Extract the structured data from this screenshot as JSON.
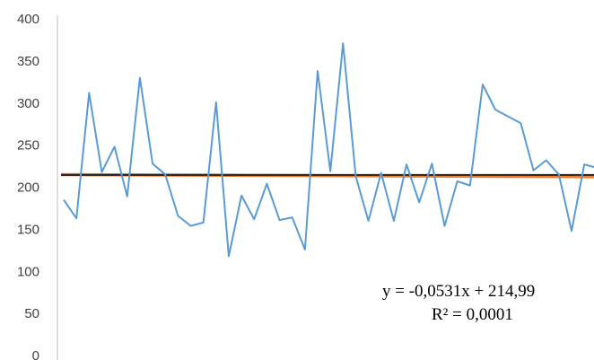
{
  "chart_data": {
    "type": "line",
    "title": "",
    "xlabel": "",
    "ylabel": "",
    "ylim": [
      0,
      400
    ],
    "yticks": [
      0,
      50,
      100,
      150,
      200,
      250,
      300,
      350,
      400
    ],
    "yticks_labels": [
      "0",
      "50",
      "100",
      "150",
      "200",
      "250",
      "300",
      "350",
      "400"
    ],
    "grid": false,
    "legend": "none",
    "series": [
      {
        "color": "#5b9bd5",
        "x": [
          1,
          2,
          3,
          4,
          5,
          6,
          7,
          8,
          9,
          10,
          11,
          12,
          13,
          14,
          15,
          16,
          17,
          18,
          19,
          20,
          21,
          22,
          23,
          24,
          25,
          26,
          27,
          28,
          29,
          30,
          31,
          32,
          33,
          34,
          35,
          36,
          37,
          38,
          39,
          40,
          41,
          42,
          43,
          44,
          45,
          46,
          47,
          48
        ],
        "values": [
          185,
          163,
          312,
          218,
          248,
          189,
          330,
          228,
          215,
          166,
          154,
          158,
          301,
          118,
          190,
          162,
          204,
          161,
          164,
          126,
          338,
          219,
          371,
          213,
          160,
          217,
          160,
          227,
          182,
          228,
          154,
          207,
          202,
          322,
          292,
          284,
          276,
          220,
          232,
          215,
          148,
          227,
          223,
          236,
          226,
          200,
          205,
          213
        ]
      }
    ],
    "trendlines": [
      {
        "kind": "linear",
        "color": "#ed7d31",
        "slope": -0.0531,
        "intercept": 214.99
      },
      {
        "kind": "flat",
        "color": "#222222",
        "value": 214.5
      }
    ],
    "annotations": {
      "equation": "y = -0,0531x + 214,99",
      "r_squared": "R² = 0,0001"
    }
  }
}
